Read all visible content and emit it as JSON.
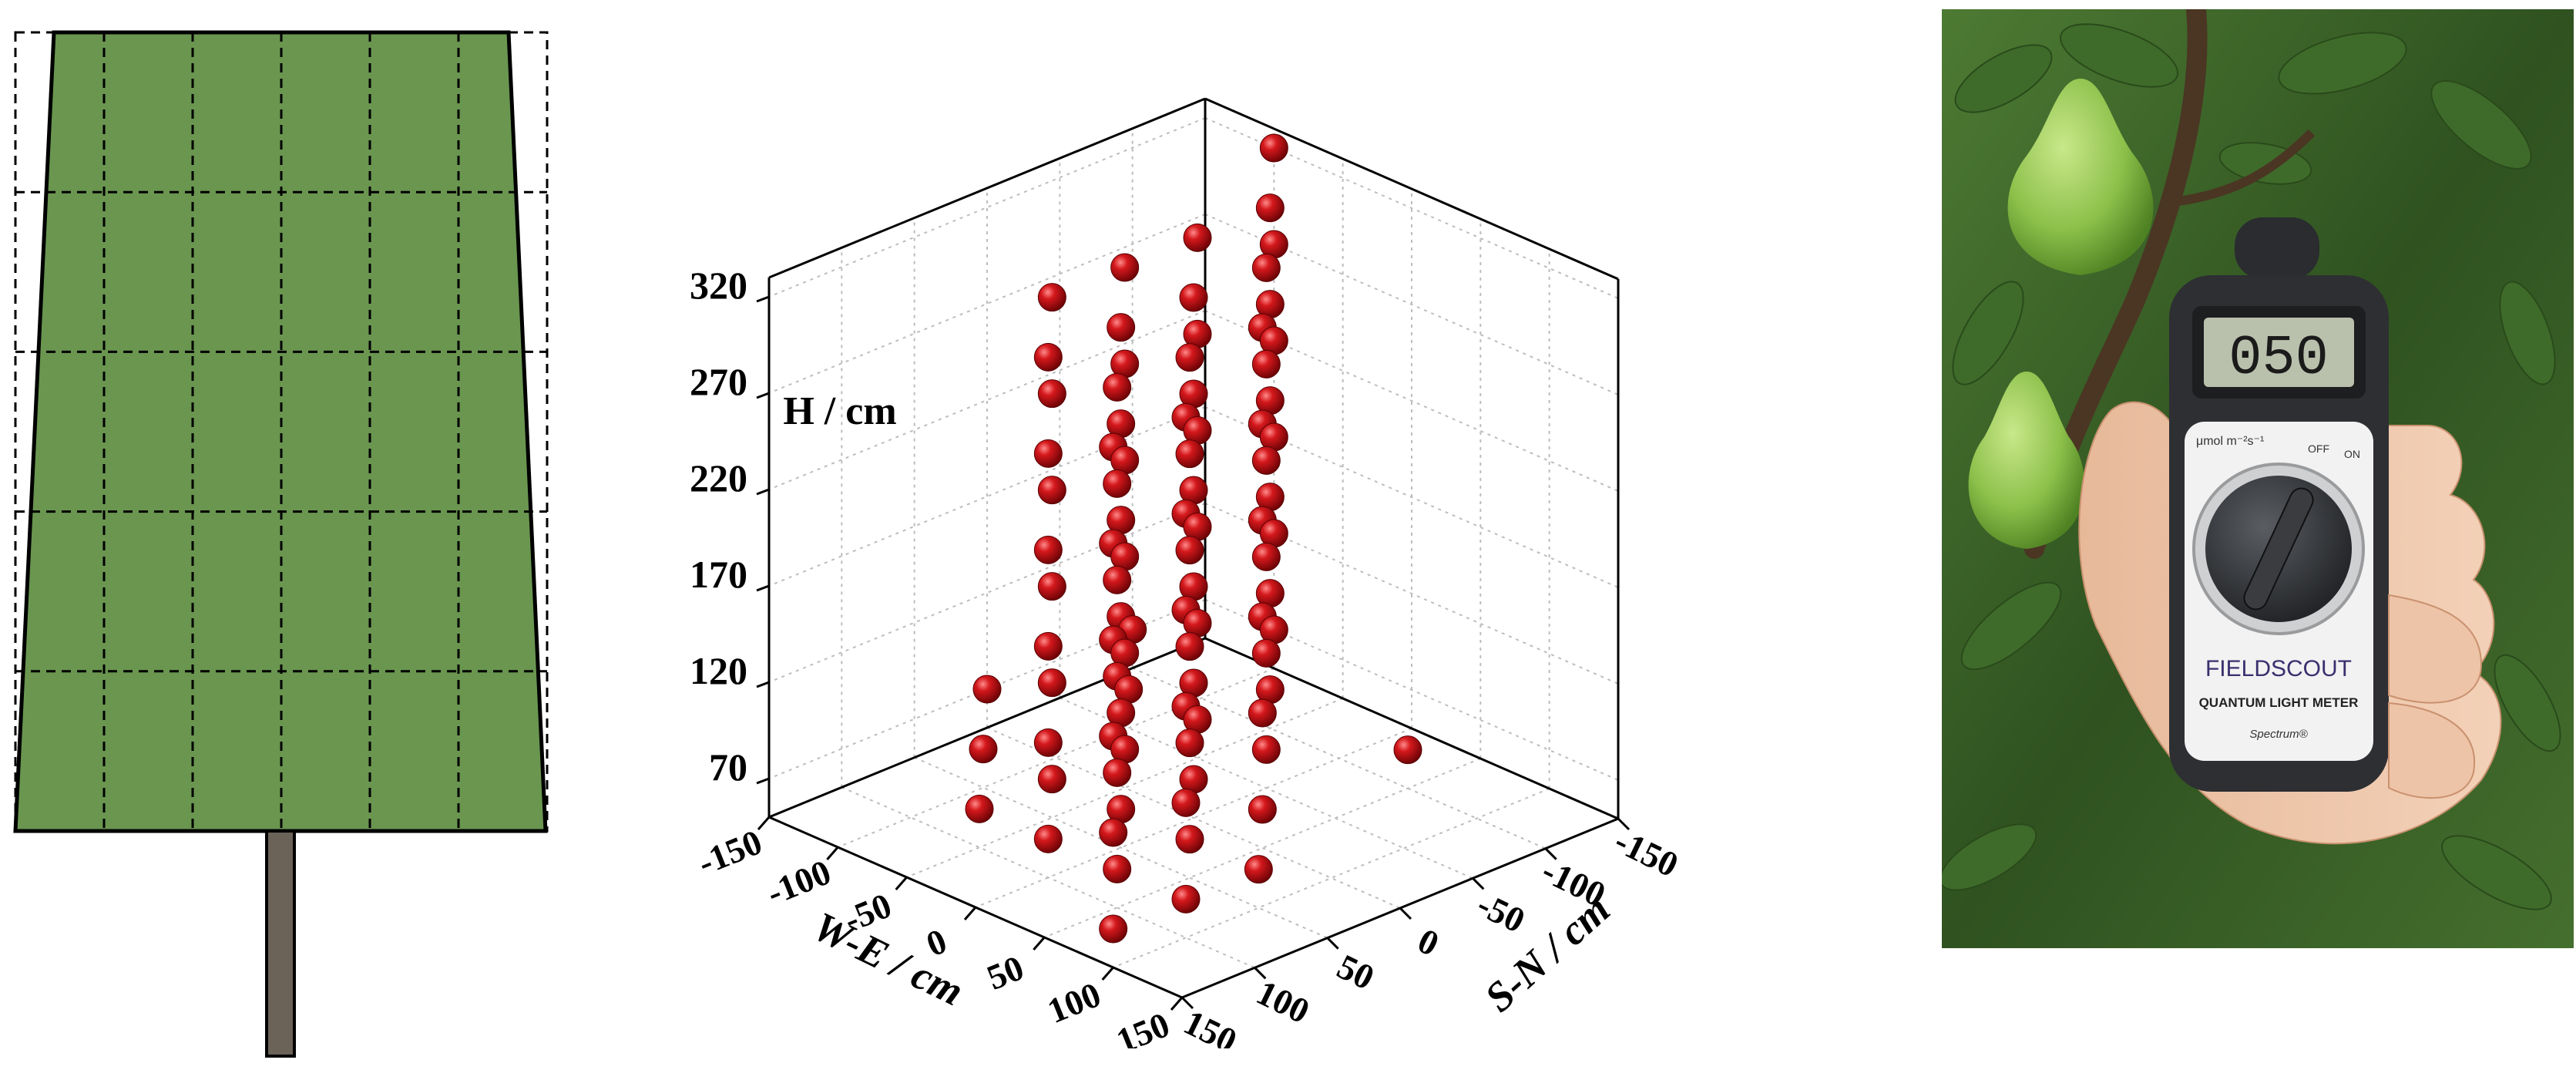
{
  "panel_a": {
    "canopy_color": "#6a9650",
    "trunk_color": "#6b6258",
    "grid_rows": 5,
    "grid_cols": 6
  },
  "chart_data": {
    "type": "scatter",
    "subtype": "3d-scatter",
    "marker_color": "#c0171a",
    "xlabel": "W-E / cm",
    "ylabel": "S-N / cm",
    "zlabel": "H / cm",
    "x_ticks": [
      "-150",
      "-100",
      "-50",
      "0",
      "50",
      "100",
      "150"
    ],
    "y_ticks": [
      "-150",
      "-100",
      "-50",
      "0",
      "50",
      "100",
      "150"
    ],
    "z_ticks": [
      "70",
      "120",
      "170",
      "220",
      "270",
      "320"
    ],
    "xlim": [
      -150,
      150
    ],
    "ylim": [
      -150,
      150
    ],
    "zlim": [
      50,
      330
    ],
    "grid": true,
    "points": [
      {
        "x": -150,
        "y": -100,
        "z": 70
      },
      {
        "x": -100,
        "y": -150,
        "z": 70
      },
      {
        "x": -50,
        "y": -100,
        "z": 70
      },
      {
        "x": 0,
        "y": -150,
        "z": 70
      },
      {
        "x": 50,
        "y": -100,
        "z": 70
      },
      {
        "x": -100,
        "y": -50,
        "z": 70
      },
      {
        "x": -50,
        "y": -50,
        "z": 70
      },
      {
        "x": 0,
        "y": -50,
        "z": 70
      },
      {
        "x": 50,
        "y": -50,
        "z": 70
      },
      {
        "x": 100,
        "y": -50,
        "z": 70
      },
      {
        "x": -50,
        "y": 0,
        "z": 70
      },
      {
        "x": 0,
        "y": 0,
        "z": 70
      },
      {
        "x": 50,
        "y": 0,
        "z": 70
      },
      {
        "x": 100,
        "y": 0,
        "z": 70
      },
      {
        "x": -100,
        "y": 50,
        "z": 70
      },
      {
        "x": 0,
        "y": 50,
        "z": 70
      },
      {
        "x": 50,
        "y": 50,
        "z": 70
      },
      {
        "x": 100,
        "y": 50,
        "z": 70
      },
      {
        "x": 50,
        "y": 100,
        "z": 70
      },
      {
        "x": 100,
        "y": 100,
        "z": 70
      },
      {
        "x": 150,
        "y": 100,
        "z": 70
      },
      {
        "x": -150,
        "y": -100,
        "z": 120
      },
      {
        "x": -100,
        "y": -50,
        "z": 120
      },
      {
        "x": -50,
        "y": -50,
        "z": 120
      },
      {
        "x": 0,
        "y": -50,
        "z": 120
      },
      {
        "x": 50,
        "y": -50,
        "z": 120
      },
      {
        "x": -50,
        "y": 0,
        "z": 120
      },
      {
        "x": 0,
        "y": 0,
        "z": 120
      },
      {
        "x": 50,
        "y": 0,
        "z": 120
      },
      {
        "x": 100,
        "y": 0,
        "z": 120
      },
      {
        "x": 0,
        "y": 50,
        "z": 120
      },
      {
        "x": 50,
        "y": 50,
        "z": 120
      },
      {
        "x": 100,
        "y": 50,
        "z": 120
      },
      {
        "x": 150,
        "y": 100,
        "z": 120
      },
      {
        "x": 100,
        "y": 100,
        "z": 120
      },
      {
        "x": -150,
        "y": -100,
        "z": 170
      },
      {
        "x": -100,
        "y": -50,
        "z": 170
      },
      {
        "x": -50,
        "y": -50,
        "z": 170
      },
      {
        "x": 0,
        "y": -50,
        "z": 170
      },
      {
        "x": 50,
        "y": -50,
        "z": 170
      },
      {
        "x": -50,
        "y": 0,
        "z": 170
      },
      {
        "x": 0,
        "y": 0,
        "z": 170
      },
      {
        "x": 50,
        "y": 0,
        "z": 170
      },
      {
        "x": 100,
        "y": 0,
        "z": 170
      },
      {
        "x": 0,
        "y": 50,
        "z": 170
      },
      {
        "x": 50,
        "y": 50,
        "z": 170
      },
      {
        "x": 100,
        "y": 50,
        "z": 170
      },
      {
        "x": 100,
        "y": 100,
        "z": 170
      },
      {
        "x": 150,
        "y": 100,
        "z": 170
      },
      {
        "x": -150,
        "y": -100,
        "z": 220
      },
      {
        "x": -100,
        "y": -50,
        "z": 220
      },
      {
        "x": -50,
        "y": -50,
        "z": 220
      },
      {
        "x": 0,
        "y": -50,
        "z": 220
      },
      {
        "x": 50,
        "y": -50,
        "z": 220
      },
      {
        "x": -50,
        "y": 0,
        "z": 220
      },
      {
        "x": 0,
        "y": 0,
        "z": 220
      },
      {
        "x": 50,
        "y": 0,
        "z": 220
      },
      {
        "x": 100,
        "y": 0,
        "z": 220
      },
      {
        "x": 0,
        "y": 50,
        "z": 220
      },
      {
        "x": 50,
        "y": 50,
        "z": 220
      },
      {
        "x": 100,
        "y": 50,
        "z": 220
      },
      {
        "x": 100,
        "y": 100,
        "z": 220
      },
      {
        "x": 150,
        "y": 100,
        "z": 220
      },
      {
        "x": -150,
        "y": -100,
        "z": 270
      },
      {
        "x": -100,
        "y": -50,
        "z": 270
      },
      {
        "x": -50,
        "y": -50,
        "z": 270
      },
      {
        "x": 0,
        "y": -50,
        "z": 270
      },
      {
        "x": 50,
        "y": -50,
        "z": 270
      },
      {
        "x": -50,
        "y": 0,
        "z": 270
      },
      {
        "x": 0,
        "y": 0,
        "z": 270
      },
      {
        "x": 50,
        "y": 0,
        "z": 270
      },
      {
        "x": 100,
        "y": 0,
        "z": 270
      },
      {
        "x": 0,
        "y": 50,
        "z": 270
      },
      {
        "x": 50,
        "y": 50,
        "z": 270
      },
      {
        "x": 100,
        "y": 50,
        "z": 270
      },
      {
        "x": 100,
        "y": 100,
        "z": 270
      },
      {
        "x": 150,
        "y": 100,
        "z": 270
      },
      {
        "x": -150,
        "y": -100,
        "z": 320
      },
      {
        "x": -100,
        "y": -50,
        "z": 320
      },
      {
        "x": -50,
        "y": -50,
        "z": 320
      },
      {
        "x": 0,
        "y": -50,
        "z": 320
      },
      {
        "x": 50,
        "y": -50,
        "z": 320
      },
      {
        "x": -50,
        "y": 0,
        "z": 320
      },
      {
        "x": 0,
        "y": 0,
        "z": 320
      },
      {
        "x": 50,
        "y": 0,
        "z": 320
      },
      {
        "x": 100,
        "y": 0,
        "z": 320
      },
      {
        "x": 0,
        "y": 50,
        "z": 320
      },
      {
        "x": 50,
        "y": 50,
        "z": 320
      },
      {
        "x": 100,
        "y": 50,
        "z": 320
      },
      {
        "x": 100,
        "y": 100,
        "z": 320
      },
      {
        "x": 150,
        "y": 100,
        "z": 320
      }
    ]
  },
  "panel_c": {
    "meter_display": "050",
    "unit_label": "μmol m⁻²s⁻¹",
    "off_label": "OFF",
    "on_label": "ON",
    "brand": "FIELDSCOUT",
    "product": "QUANTUM LIGHT METER",
    "maker": "Spectrum®",
    "leaf_color": "#3f6b2a",
    "pear_color": "#8cc04a"
  }
}
